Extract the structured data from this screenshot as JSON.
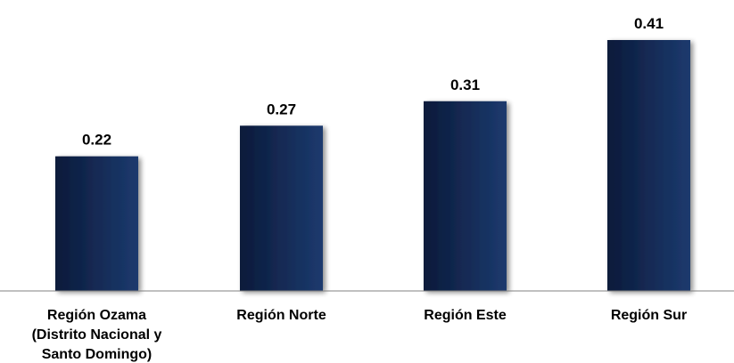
{
  "chart_data": {
    "type": "bar",
    "categories": [
      [
        "Región Ozama",
        "(Distrito Nacional y",
        "Santo Domingo)"
      ],
      [
        "Región Norte"
      ],
      [
        "Región Este"
      ],
      [
        "Región Sur"
      ]
    ],
    "values": [
      0.22,
      0.27,
      0.31,
      0.41
    ],
    "data_labels": [
      "0.22",
      "0.27",
      "0.31",
      "0.41"
    ],
    "ylim": [
      0,
      0.45
    ],
    "grid": false,
    "legend": "none",
    "colors": {
      "bar_dark": "#0b1a3a",
      "bar_light": "#1c3a6e",
      "axis": "#808080",
      "text": "#000000"
    }
  }
}
